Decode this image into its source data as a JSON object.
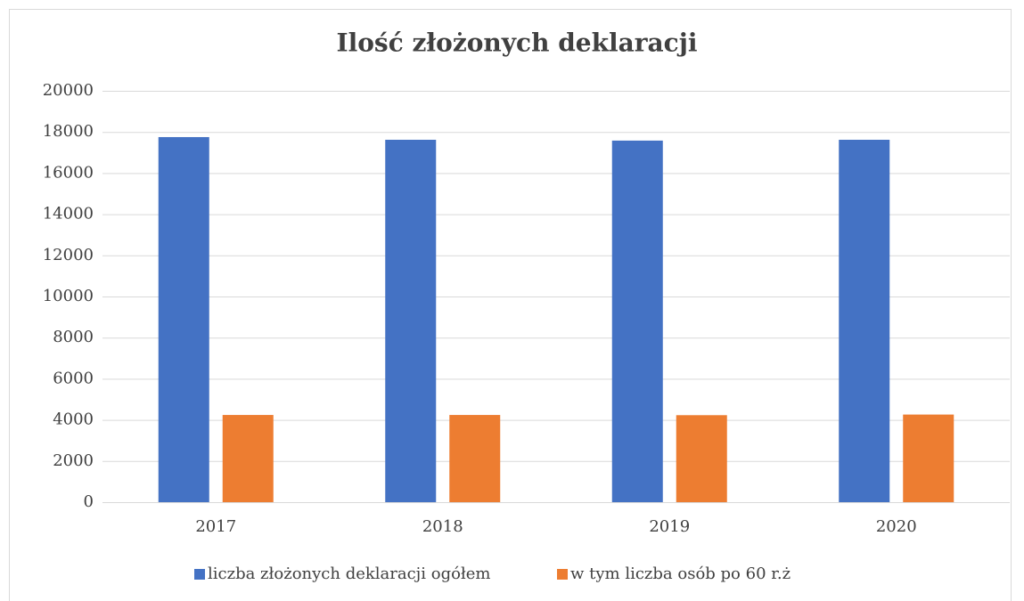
{
  "chart_data": {
    "type": "bar",
    "title": "Ilość złożonych deklaracji",
    "categories": [
      "2017",
      "2018",
      "2019",
      "2020"
    ],
    "series": [
      {
        "name": "liczba złożonych deklaracji ogółem",
        "color": "#4472c4",
        "values": [
          17750,
          17620,
          17580,
          17620
        ]
      },
      {
        "name": "w tym liczba osób po 60 r.ż",
        "color": "#ed7d31",
        "values": [
          4240,
          4240,
          4230,
          4260
        ]
      }
    ],
    "ylim": [
      0,
      20000
    ],
    "yticks": [
      0,
      2000,
      4000,
      6000,
      8000,
      10000,
      12000,
      14000,
      16000,
      18000,
      20000
    ],
    "grid": true,
    "legend": "bottom"
  }
}
